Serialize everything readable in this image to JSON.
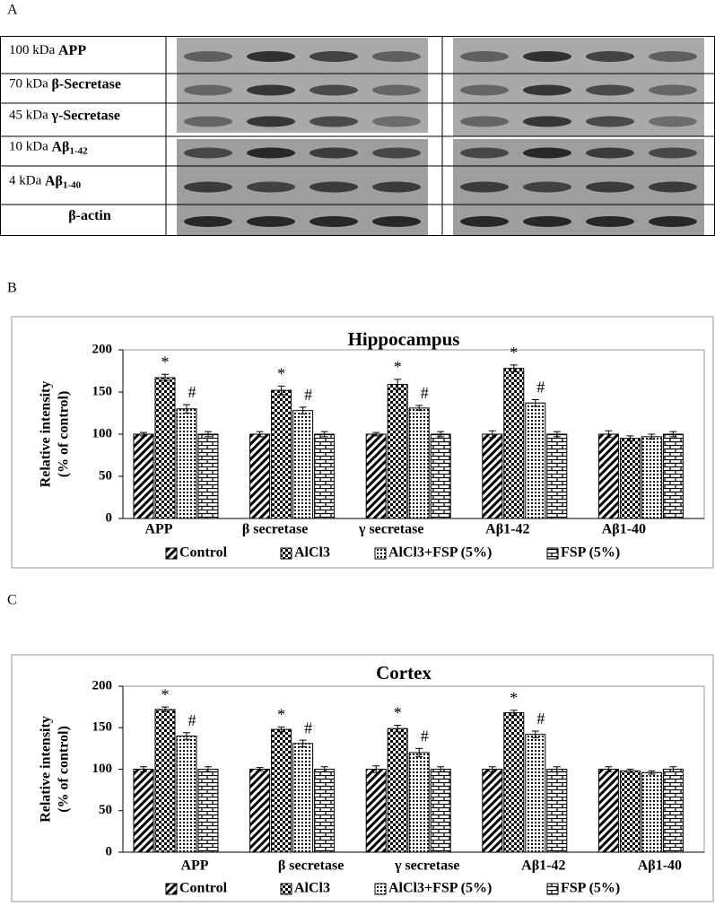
{
  "panel_labels": [
    "A",
    "B",
    "C"
  ],
  "blot": {
    "rows": [
      {
        "size": "100 kDa",
        "protein": "APP"
      },
      {
        "size": "70 kDa",
        "protein": "β-Secretase"
      },
      {
        "size": "45 kDa",
        "protein": "γ-Secretase"
      },
      {
        "size": "10 kDa",
        "protein": "Aβ",
        "sub": "1-42"
      },
      {
        "size": "4 kDa",
        "protein": "Aβ",
        "sub": "1-40"
      },
      {
        "protein": "β-actin"
      }
    ]
  },
  "chart_data": [
    {
      "type": "bar",
      "title": "Hippocampus",
      "ylabel": [
        "Relative intensity",
        "(% of control)"
      ],
      "categories": [
        "APP",
        "β secretase",
        "γ secretase",
        "Aβ1-42",
        "Aβ1-40"
      ],
      "ylim": [
        0,
        200
      ],
      "yticks": [
        0,
        50,
        100,
        150,
        200
      ],
      "grid": false,
      "series": [
        {
          "name": "Control",
          "pattern": "diagonal",
          "values": [
            100,
            100,
            100,
            100,
            100
          ],
          "errors": [
            2,
            3,
            2,
            4,
            4
          ]
        },
        {
          "name": "AlCl3",
          "pattern": "checker",
          "values": [
            167,
            152,
            159,
            178,
            95
          ],
          "errors": [
            4,
            5,
            6,
            4,
            3
          ],
          "markers": [
            "*",
            "*",
            "*",
            "*",
            null
          ]
        },
        {
          "name": "AlCl3+FSP (5%)",
          "pattern": "dots",
          "values": [
            130,
            128,
            131,
            137,
            97
          ],
          "errors": [
            5,
            4,
            3,
            4,
            3
          ],
          "markers": [
            "#",
            "#",
            "#",
            "#",
            null
          ]
        },
        {
          "name": "FSP (5%)",
          "pattern": "brick",
          "values": [
            100,
            100,
            100,
            100,
            100
          ],
          "errors": [
            3,
            3,
            3,
            3,
            3
          ]
        }
      ]
    },
    {
      "type": "bar",
      "title": "Cortex",
      "ylabel": [
        "Relative intensity",
        "(% of control)"
      ],
      "categories": [
        "APP",
        "β secretase",
        "γ secretase",
        "Aβ1-42",
        "Aβ1-40"
      ],
      "ylim": [
        0,
        200
      ],
      "yticks": [
        0,
        50,
        100,
        150,
        200
      ],
      "grid": false,
      "series": [
        {
          "name": "Control",
          "pattern": "diagonal",
          "values": [
            100,
            100,
            100,
            100,
            100
          ],
          "errors": [
            3,
            2,
            4,
            3,
            3
          ]
        },
        {
          "name": "AlCl3",
          "pattern": "checker",
          "values": [
            172,
            148,
            149,
            168,
            98
          ],
          "errors": [
            3,
            3,
            4,
            3,
            2
          ],
          "markers": [
            "*",
            "*",
            "*",
            "*",
            null
          ]
        },
        {
          "name": "AlCl3+FSP (5%)",
          "pattern": "dots",
          "values": [
            140,
            131,
            120,
            142,
            96
          ],
          "errors": [
            4,
            4,
            5,
            4,
            2
          ],
          "markers": [
            "#",
            "#",
            "#",
            "#",
            null
          ]
        },
        {
          "name": "FSP (5%)",
          "pattern": "brick",
          "values": [
            100,
            100,
            100,
            100,
            100
          ],
          "errors": [
            3,
            3,
            3,
            3,
            3
          ]
        }
      ]
    }
  ]
}
